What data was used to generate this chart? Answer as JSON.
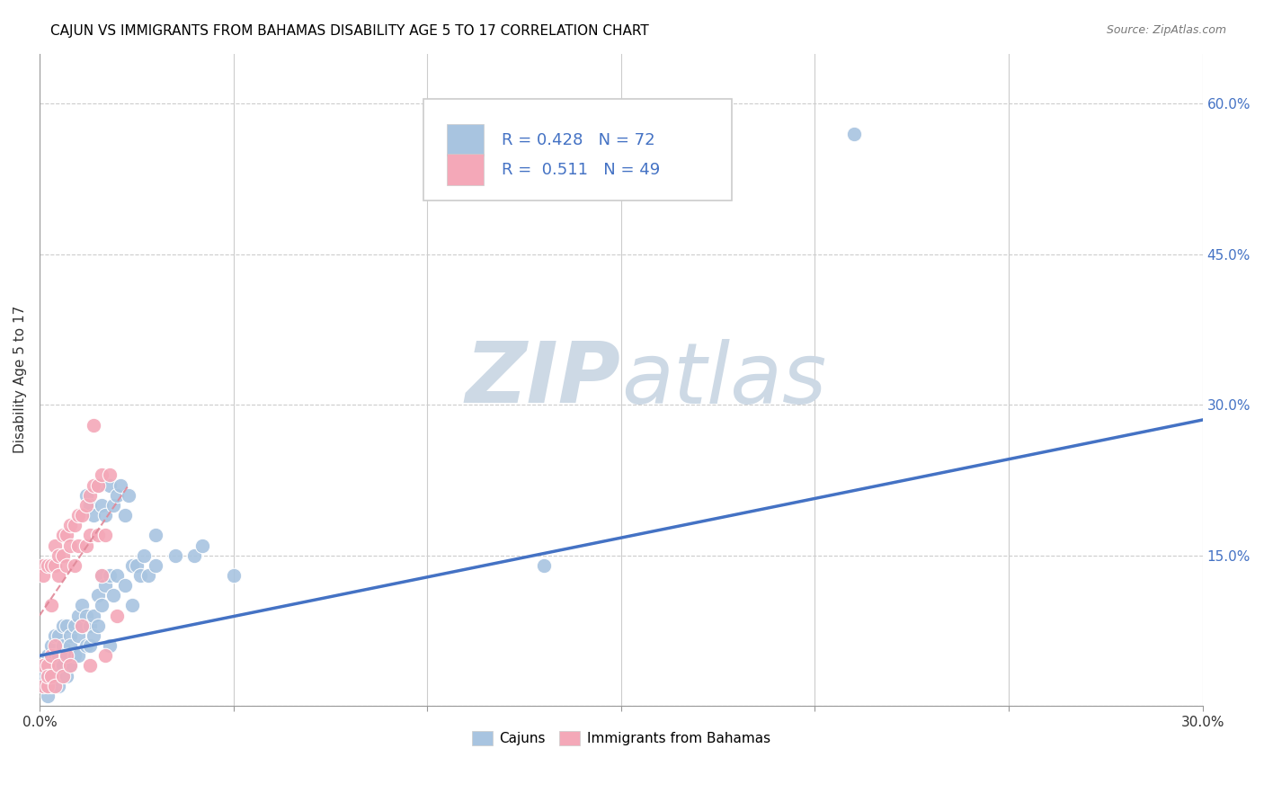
{
  "title": "CAJUN VS IMMIGRANTS FROM BAHAMAS DISABILITY AGE 5 TO 17 CORRELATION CHART",
  "source_text": "Source: ZipAtlas.com",
  "xlabel": "",
  "ylabel": "Disability Age 5 to 17",
  "xlim": [
    0.0,
    0.3
  ],
  "ylim": [
    0.0,
    0.65
  ],
  "xticks": [
    0.0,
    0.05,
    0.1,
    0.15,
    0.2,
    0.25,
    0.3
  ],
  "xticklabels": [
    "0.0%",
    "",
    "",
    "",
    "",
    "",
    "30.0%"
  ],
  "ytick_positions": [
    0.0,
    0.15,
    0.3,
    0.45,
    0.6
  ],
  "ytick_labels_right": [
    "",
    "15.0%",
    "30.0%",
    "45.0%",
    "60.0%"
  ],
  "legend_R1": "R = 0.428",
  "legend_N1": "N = 72",
  "legend_R2": "R =  0.511",
  "legend_N2": "N = 49",
  "cajun_color": "#a8c4e0",
  "bahamas_color": "#f4a8b8",
  "trendline_cajun_color": "#4472c4",
  "trendline_bahamas_color": "#e08898",
  "watermark_color": "#cdd9e5",
  "background_color": "#ffffff",
  "grid_color": "#cccccc",
  "title_fontsize": 11,
  "cajun_points": [
    [
      0.001,
      0.04
    ],
    [
      0.001,
      0.02
    ],
    [
      0.001,
      0.03
    ],
    [
      0.002,
      0.05
    ],
    [
      0.002,
      0.03
    ],
    [
      0.002,
      0.01
    ],
    [
      0.003,
      0.06
    ],
    [
      0.003,
      0.04
    ],
    [
      0.003,
      0.02
    ],
    [
      0.004,
      0.05
    ],
    [
      0.004,
      0.03
    ],
    [
      0.004,
      0.07
    ],
    [
      0.005,
      0.07
    ],
    [
      0.005,
      0.05
    ],
    [
      0.005,
      0.04
    ],
    [
      0.005,
      0.02
    ],
    [
      0.006,
      0.06
    ],
    [
      0.006,
      0.04
    ],
    [
      0.006,
      0.08
    ],
    [
      0.007,
      0.08
    ],
    [
      0.007,
      0.05
    ],
    [
      0.007,
      0.03
    ],
    [
      0.008,
      0.07
    ],
    [
      0.008,
      0.06
    ],
    [
      0.008,
      0.04
    ],
    [
      0.009,
      0.08
    ],
    [
      0.009,
      0.05
    ],
    [
      0.01,
      0.09
    ],
    [
      0.01,
      0.07
    ],
    [
      0.01,
      0.05
    ],
    [
      0.011,
      0.1
    ],
    [
      0.011,
      0.08
    ],
    [
      0.012,
      0.21
    ],
    [
      0.012,
      0.09
    ],
    [
      0.012,
      0.06
    ],
    [
      0.013,
      0.2
    ],
    [
      0.013,
      0.08
    ],
    [
      0.013,
      0.06
    ],
    [
      0.014,
      0.19
    ],
    [
      0.014,
      0.09
    ],
    [
      0.014,
      0.07
    ],
    [
      0.015,
      0.22
    ],
    [
      0.015,
      0.11
    ],
    [
      0.015,
      0.08
    ],
    [
      0.016,
      0.2
    ],
    [
      0.016,
      0.13
    ],
    [
      0.016,
      0.1
    ],
    [
      0.017,
      0.19
    ],
    [
      0.017,
      0.12
    ],
    [
      0.018,
      0.22
    ],
    [
      0.018,
      0.13
    ],
    [
      0.018,
      0.06
    ],
    [
      0.019,
      0.2
    ],
    [
      0.019,
      0.11
    ],
    [
      0.02,
      0.21
    ],
    [
      0.02,
      0.13
    ],
    [
      0.021,
      0.22
    ],
    [
      0.022,
      0.19
    ],
    [
      0.022,
      0.12
    ],
    [
      0.023,
      0.21
    ],
    [
      0.024,
      0.14
    ],
    [
      0.024,
      0.1
    ],
    [
      0.025,
      0.14
    ],
    [
      0.026,
      0.13
    ],
    [
      0.027,
      0.15
    ],
    [
      0.028,
      0.13
    ],
    [
      0.03,
      0.17
    ],
    [
      0.03,
      0.14
    ],
    [
      0.035,
      0.15
    ],
    [
      0.04,
      0.15
    ],
    [
      0.042,
      0.16
    ],
    [
      0.05,
      0.13
    ],
    [
      0.13,
      0.14
    ],
    [
      0.21,
      0.57
    ]
  ],
  "bahamas_points": [
    [
      0.001,
      0.14
    ],
    [
      0.001,
      0.13
    ],
    [
      0.001,
      0.04
    ],
    [
      0.001,
      0.02
    ],
    [
      0.002,
      0.14
    ],
    [
      0.002,
      0.04
    ],
    [
      0.002,
      0.02
    ],
    [
      0.002,
      0.03
    ],
    [
      0.003,
      0.14
    ],
    [
      0.003,
      0.1
    ],
    [
      0.003,
      0.03
    ],
    [
      0.003,
      0.05
    ],
    [
      0.004,
      0.16
    ],
    [
      0.004,
      0.14
    ],
    [
      0.004,
      0.06
    ],
    [
      0.004,
      0.02
    ],
    [
      0.005,
      0.15
    ],
    [
      0.005,
      0.13
    ],
    [
      0.005,
      0.04
    ],
    [
      0.006,
      0.17
    ],
    [
      0.006,
      0.15
    ],
    [
      0.006,
      0.03
    ],
    [
      0.007,
      0.17
    ],
    [
      0.007,
      0.14
    ],
    [
      0.007,
      0.05
    ],
    [
      0.008,
      0.18
    ],
    [
      0.008,
      0.16
    ],
    [
      0.008,
      0.04
    ],
    [
      0.009,
      0.18
    ],
    [
      0.009,
      0.14
    ],
    [
      0.01,
      0.19
    ],
    [
      0.01,
      0.16
    ],
    [
      0.011,
      0.19
    ],
    [
      0.011,
      0.08
    ],
    [
      0.012,
      0.2
    ],
    [
      0.012,
      0.16
    ],
    [
      0.013,
      0.21
    ],
    [
      0.013,
      0.17
    ],
    [
      0.013,
      0.04
    ],
    [
      0.014,
      0.22
    ],
    [
      0.014,
      0.28
    ],
    [
      0.015,
      0.22
    ],
    [
      0.015,
      0.17
    ],
    [
      0.016,
      0.23
    ],
    [
      0.016,
      0.13
    ],
    [
      0.017,
      0.17
    ],
    [
      0.017,
      0.05
    ],
    [
      0.018,
      0.23
    ],
    [
      0.02,
      0.09
    ]
  ],
  "cajun_trendline": [
    [
      0.0,
      0.05
    ],
    [
      0.3,
      0.285
    ]
  ],
  "bahamas_trendline": [
    [
      0.0,
      0.09
    ],
    [
      0.023,
      0.22
    ]
  ]
}
